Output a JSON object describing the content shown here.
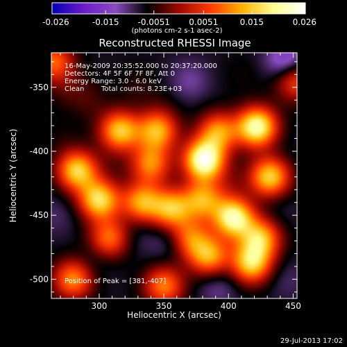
{
  "chart_data": {
    "type": "heatmap",
    "title": "Reconstructed RHESSI Image",
    "xlabel": "Heliocentric X (arcsec)",
    "ylabel": "Heliocentric Y (arcsec)",
    "xlim": [
      263,
      453
    ],
    "ylim": [
      -515,
      -323
    ],
    "x_ticks": [
      300,
      350,
      400,
      450
    ],
    "y_ticks": [
      -350,
      -400,
      -450,
      -500
    ],
    "colorbar": {
      "range": [
        -0.026,
        0.026
      ],
      "ticks": [
        "-0.026",
        "-0.015",
        "-0.0051",
        "0.0051",
        "0.015",
        "0.026"
      ],
      "unit_label": "(photons cm-2 s-1 asec-2)",
      "colors": [
        "#0000b4",
        "#6a1cc8",
        "#8a4cc0",
        "#000000",
        "#9c0800",
        "#ff3a00",
        "#ffb000",
        "#ffff90",
        "#ffffff"
      ]
    },
    "annotations": {
      "time_range": "16-May-2009 20:35:52.000 to 20:37:20.000",
      "detectors": "Detectors: 4F 5F 6F 7F 8F, Att 0",
      "energy": "Energy Range: 3.0 - 6.0 keV",
      "clean": "Clean",
      "counts": "Total counts: 8.23E+03",
      "peak": "Position of Peak = [381,-407]"
    },
    "peak": [
      381,
      -407
    ],
    "sources": [
      {
        "x": 381,
        "y": -407,
        "value": 0.026
      },
      {
        "x": 422,
        "y": -381,
        "value": 0.023
      },
      {
        "x": 316,
        "y": -384,
        "value": 0.016
      },
      {
        "x": 345,
        "y": -384,
        "value": 0.014
      },
      {
        "x": 392,
        "y": -385,
        "value": 0.012
      },
      {
        "x": 283,
        "y": -415,
        "value": 0.017
      },
      {
        "x": 340,
        "y": -410,
        "value": 0.011
      },
      {
        "x": 432,
        "y": -420,
        "value": 0.017
      },
      {
        "x": 300,
        "y": -438,
        "value": 0.018
      },
      {
        "x": 333,
        "y": -440,
        "value": 0.013
      },
      {
        "x": 356,
        "y": -445,
        "value": 0.014
      },
      {
        "x": 404,
        "y": -452,
        "value": 0.022
      },
      {
        "x": 380,
        "y": -438,
        "value": 0.012
      },
      {
        "x": 425,
        "y": -468,
        "value": 0.014
      },
      {
        "x": 385,
        "y": -482,
        "value": 0.013
      },
      {
        "x": 418,
        "y": -488,
        "value": 0.016
      },
      {
        "x": 308,
        "y": -468,
        "value": 0.01
      },
      {
        "x": 280,
        "y": -500,
        "value": 0.012
      },
      {
        "x": 350,
        "y": -505,
        "value": 0.011
      },
      {
        "x": 370,
        "y": -468,
        "value": 0.009
      },
      {
        "x": 265,
        "y": -330,
        "value": 0.009
      },
      {
        "x": 452,
        "y": -345,
        "value": 0.008
      },
      {
        "x": 292,
        "y": -360,
        "value": -0.004
      },
      {
        "x": 370,
        "y": -345,
        "value": -0.012
      },
      {
        "x": 410,
        "y": -340,
        "value": -0.006
      },
      {
        "x": 445,
        "y": -330,
        "value": -0.018
      },
      {
        "x": 330,
        "y": -348,
        "value": -0.005
      },
      {
        "x": 275,
        "y": -350,
        "value": -0.004
      },
      {
        "x": 440,
        "y": -400,
        "value": -0.008
      },
      {
        "x": 355,
        "y": -470,
        "value": -0.012
      },
      {
        "x": 328,
        "y": -465,
        "value": -0.01
      },
      {
        "x": 296,
        "y": -487,
        "value": -0.01
      },
      {
        "x": 444,
        "y": -500,
        "value": -0.01
      },
      {
        "x": 392,
        "y": -505,
        "value": -0.012
      },
      {
        "x": 348,
        "y": -490,
        "value": -0.008
      },
      {
        "x": 365,
        "y": -410,
        "value": -0.008
      },
      {
        "x": 310,
        "y": -410,
        "value": -0.006
      },
      {
        "x": 400,
        "y": -425,
        "value": -0.004
      },
      {
        "x": 440,
        "y": -445,
        "value": -0.009
      },
      {
        "x": 268,
        "y": -450,
        "value": -0.01
      },
      {
        "x": 270,
        "y": -390,
        "value": -0.006
      },
      {
        "x": 348,
        "y": -365,
        "value": -0.006
      },
      {
        "x": 412,
        "y": -478,
        "value": -0.006
      }
    ]
  },
  "footer": {
    "timestamp": "29-Jul-2013 17:02"
  }
}
